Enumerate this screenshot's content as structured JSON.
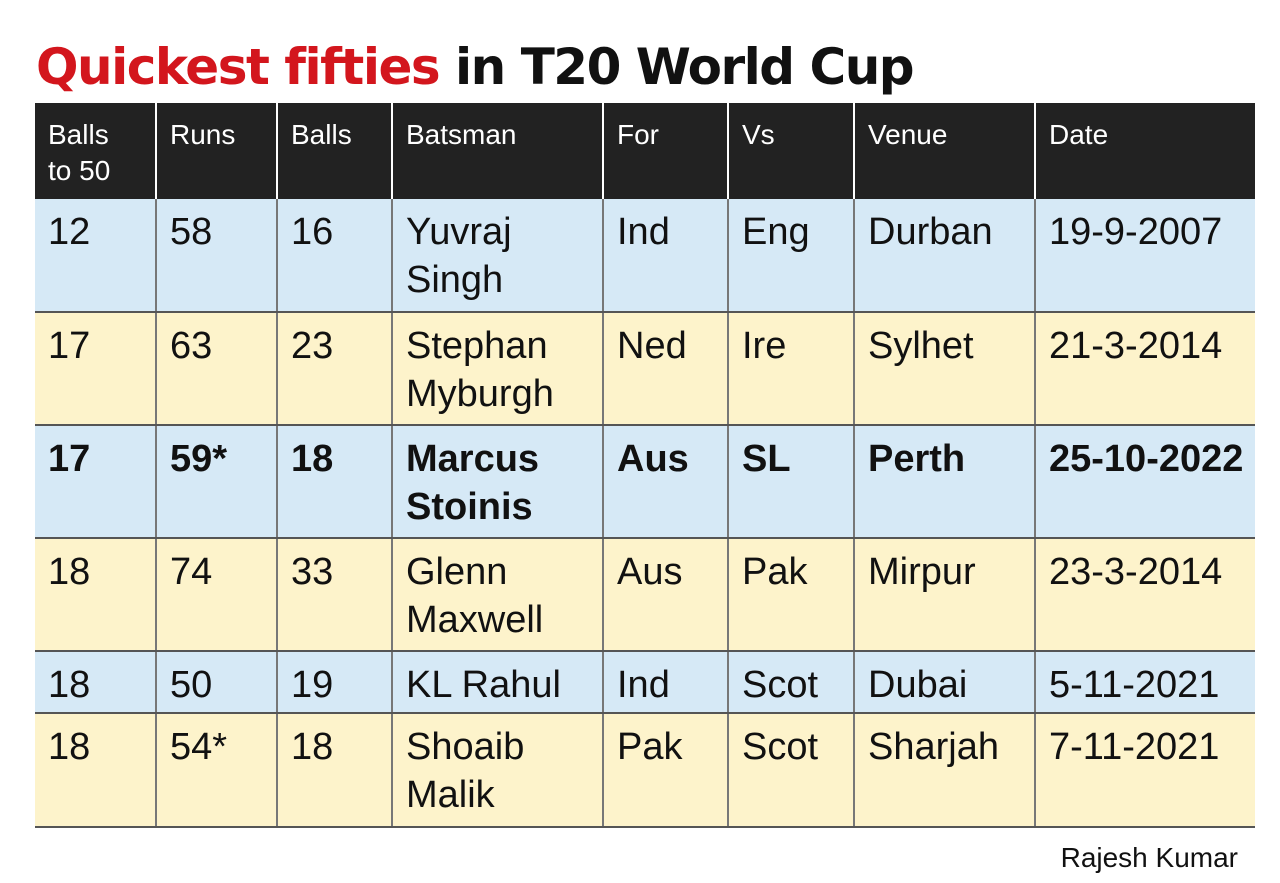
{
  "title": {
    "part1": "Quickest fifties",
    "part2": "in T20 World Cup"
  },
  "chart_data": {
    "type": "table",
    "columns": [
      {
        "line1": "Balls",
        "line2": "to 50"
      },
      {
        "line1": "Runs",
        "line2": ""
      },
      {
        "line1": "Balls",
        "line2": ""
      },
      {
        "line1": "Batsman",
        "line2": ""
      },
      {
        "line1": "For",
        "line2": ""
      },
      {
        "line1": "Vs",
        "line2": ""
      },
      {
        "line1": "Venue",
        "line2": ""
      },
      {
        "line1": "Date",
        "line2": ""
      }
    ],
    "rows": [
      {
        "balls_to_50": "12",
        "runs": "58",
        "balls": "16",
        "batsman_first": "Yuvraj",
        "batsman_last": "Singh",
        "for": "Ind",
        "vs": "Eng",
        "venue": "Durban",
        "date": "19-9-2007",
        "shade": "blue",
        "highlight": false
      },
      {
        "balls_to_50": "17",
        "runs": "63",
        "balls": "23",
        "batsman_first": "Stephan",
        "batsman_last": "Myburgh",
        "for": "Ned",
        "vs": "Ire",
        "venue": "Sylhet",
        "date": "21-3-2014",
        "shade": "yellow",
        "highlight": false
      },
      {
        "balls_to_50": "17",
        "runs": "59*",
        "balls": "18",
        "batsman_first": "Marcus",
        "batsman_last": "Stoinis",
        "for": "Aus",
        "vs": "SL",
        "venue": "Perth",
        "date": "25-10-2022",
        "shade": "blue",
        "highlight": true
      },
      {
        "balls_to_50": "18",
        "runs": "74",
        "balls": "33",
        "batsman_first": "Glenn",
        "batsman_last": "Maxwell",
        "for": "Aus",
        "vs": "Pak",
        "venue": "Mirpur",
        "date": "23-3-2014",
        "shade": "yellow",
        "highlight": false
      },
      {
        "balls_to_50": "18",
        "runs": "50",
        "balls": "19",
        "batsman_first": "KL Rahul",
        "batsman_last": "",
        "for": "Ind",
        "vs": "Scot",
        "venue": "Dubai",
        "date": "5-11-2021",
        "shade": "blue",
        "highlight": false
      },
      {
        "balls_to_50": "18",
        "runs": "54*",
        "balls": "18",
        "batsman_first": "Shoaib",
        "batsman_last": "Malik",
        "for": "Pak",
        "vs": "Scot",
        "venue": "Sharjah",
        "date": "7-11-2021",
        "shade": "yellow",
        "highlight": false
      }
    ]
  },
  "credit": "Rajesh Kumar",
  "colors": {
    "title_red": "#d3161d",
    "header_bg": "#222222",
    "row_blue": "#d6e9f6",
    "row_yellow": "#fdf3cb"
  }
}
